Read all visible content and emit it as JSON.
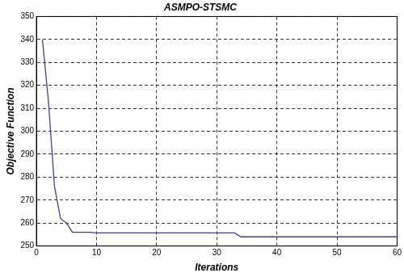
{
  "chart_data": {
    "type": "line",
    "title": "ASMPO-STSMC",
    "x_label": "Iterations",
    "y_label": "Objective Function",
    "x": [
      1,
      2,
      3,
      4,
      5,
      6,
      9,
      10,
      33,
      34,
      60
    ],
    "values": [
      340,
      313,
      276,
      262,
      260,
      256,
      256,
      255.7,
      255.7,
      254,
      254
    ],
    "color": "#3c3f94",
    "xlim": [
      0,
      60
    ],
    "xticks": [
      0,
      10,
      20,
      30,
      40,
      50,
      60
    ],
    "ylim": [
      250,
      350
    ],
    "yticks": [
      250,
      260,
      270,
      280,
      290,
      300,
      310,
      320,
      330,
      340,
      350
    ],
    "grid": true
  }
}
